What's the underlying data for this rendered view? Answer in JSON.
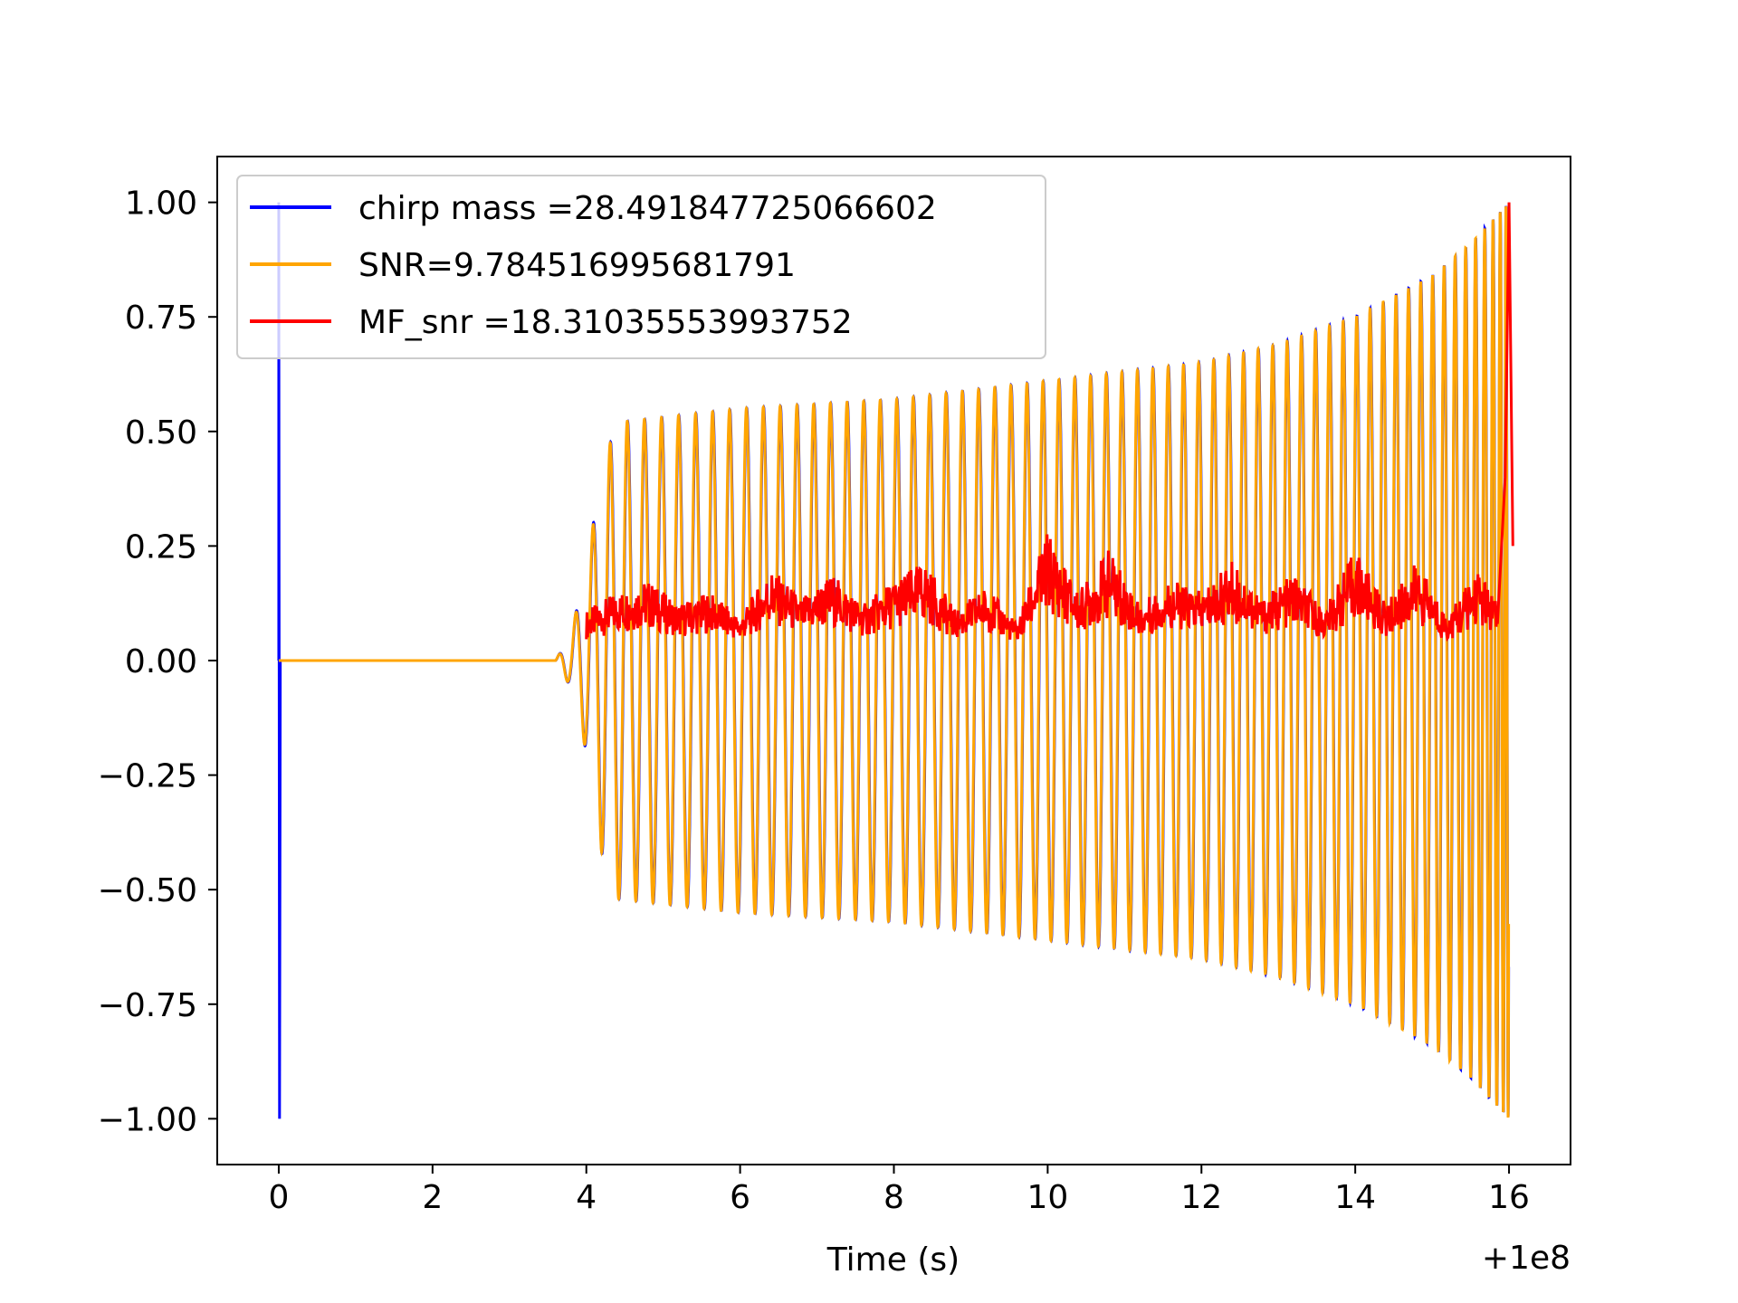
{
  "chart_data": {
    "type": "line",
    "title": "",
    "xlabel": "Time (s)",
    "ylabel": "",
    "x_offset_label": "+1e8",
    "xlim": [
      -0.8,
      16.8
    ],
    "ylim": [
      -1.1,
      1.1
    ],
    "xticks": [
      0,
      2,
      4,
      6,
      8,
      10,
      12,
      14,
      16
    ],
    "xtick_labels": [
      "0",
      "2",
      "4",
      "6",
      "8",
      "10",
      "12",
      "14",
      "16"
    ],
    "yticks": [
      1.0,
      0.75,
      0.5,
      0.25,
      0.0,
      -0.25,
      -0.5,
      -0.75,
      -1.0
    ],
    "ytick_labels": [
      "1.00",
      "0.75",
      "0.50",
      "0.25",
      "0.00",
      "−0.25",
      "−0.50",
      "−0.75",
      "−1.00"
    ],
    "grid": false,
    "legend_position": "upper-left",
    "series": [
      {
        "name": "chirp mass =28.491847725066602",
        "color": "#0000ff",
        "description": "oscillating chirp waveform; spike at t=0, envelope grows from t~3.6 to ~0.52 at t~4.4, then rises to 1.0 at t=16",
        "envelope_x": [
          0.0,
          3.6,
          3.8,
          4.0,
          4.2,
          4.4,
          6,
          8,
          10,
          12,
          13,
          14,
          15,
          15.5,
          16.0
        ],
        "envelope_y": [
          1.0,
          0.0,
          0.06,
          0.2,
          0.42,
          0.52,
          0.55,
          0.57,
          0.61,
          0.65,
          0.69,
          0.75,
          0.84,
          0.91,
          1.0
        ]
      },
      {
        "name": "SNR=9.784516995681791",
        "color": "#ffa500",
        "description": "oscillating waveform overlaying the blue one with the same envelope",
        "envelope_x": [
          0.0,
          3.6,
          3.8,
          4.0,
          4.2,
          4.4,
          6,
          8,
          10,
          12,
          13,
          14,
          15,
          15.5,
          16.0
        ],
        "envelope_y": [
          0.0,
          0.0,
          0.06,
          0.2,
          0.42,
          0.52,
          0.55,
          0.57,
          0.61,
          0.65,
          0.69,
          0.75,
          0.84,
          0.91,
          1.0
        ]
      },
      {
        "name": "MF_snr =18.31035553993752",
        "color": "#ff0000",
        "description": "noisy matched-filter output around 0.05-0.2 from t=4 to 15.9, sharp peak to 1.0 at t=16",
        "x": [
          4.0,
          4.4,
          4.8,
          5.2,
          5.6,
          6.0,
          6.4,
          6.8,
          7.2,
          7.6,
          8.0,
          8.4,
          8.8,
          9.2,
          9.6,
          10.0,
          10.4,
          10.8,
          11.2,
          11.6,
          12.0,
          12.4,
          12.8,
          13.2,
          13.6,
          14.0,
          14.4,
          14.8,
          15.2,
          15.6,
          15.85,
          15.95,
          16.0,
          16.05
        ],
        "y": [
          0.07,
          0.1,
          0.12,
          0.08,
          0.1,
          0.06,
          0.14,
          0.09,
          0.13,
          0.08,
          0.12,
          0.15,
          0.07,
          0.11,
          0.05,
          0.2,
          0.1,
          0.17,
          0.08,
          0.12,
          0.1,
          0.15,
          0.09,
          0.13,
          0.07,
          0.17,
          0.08,
          0.15,
          0.06,
          0.14,
          0.08,
          0.4,
          1.0,
          0.25
        ]
      }
    ]
  }
}
